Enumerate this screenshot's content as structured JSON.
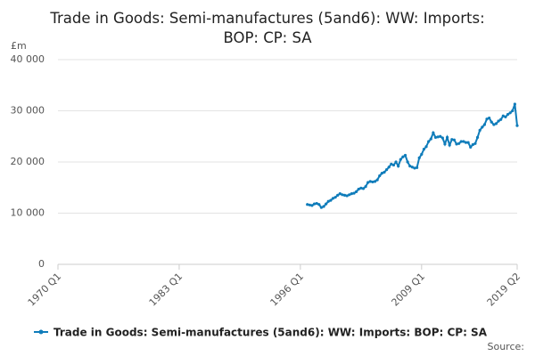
{
  "chart_data": {
    "type": "line",
    "title": "Trade in Goods: Semi-manufactures (5and6): WW: Imports: BOP: CP: SA",
    "y_unit": "£m",
    "source": "Source:",
    "categories": [
      "1970 Q1",
      null,
      null,
      null,
      null,
      null,
      null,
      null,
      null,
      null,
      null,
      null,
      null,
      null,
      null,
      null,
      null,
      null,
      null,
      null,
      null,
      null,
      null,
      null,
      null,
      null,
      null,
      null,
      null,
      null,
      null,
      null,
      null,
      null,
      null,
      null,
      null,
      null,
      null,
      null,
      null,
      null,
      null,
      null,
      null,
      null,
      null,
      null,
      null,
      null,
      null,
      null,
      "1983 Q1",
      null,
      null,
      null,
      null,
      null,
      null,
      null,
      null,
      null,
      null,
      null,
      null,
      null,
      null,
      null,
      null,
      null,
      null,
      null,
      null,
      null,
      null,
      null,
      null,
      null,
      null,
      null,
      null,
      null,
      null,
      null,
      null,
      null,
      null,
      null,
      null,
      null,
      null,
      null,
      null,
      null,
      null,
      null,
      null,
      null,
      null,
      null,
      null,
      null,
      null,
      null,
      "1996 Q1",
      null,
      null,
      null,
      null,
      null,
      null,
      null,
      null,
      null,
      null,
      null,
      null,
      null,
      null,
      null,
      null,
      null,
      null,
      null,
      null,
      null,
      null,
      null,
      null,
      null,
      null,
      null,
      null,
      null,
      null,
      null,
      null,
      null,
      null,
      null,
      null,
      null,
      null,
      null,
      null,
      null,
      null,
      null,
      null,
      null,
      null,
      null,
      null,
      null,
      null,
      null,
      "2009 Q1",
      null,
      null,
      null,
      null,
      null,
      null,
      null,
      null,
      null,
      null,
      null,
      null,
      null,
      null,
      null,
      null,
      null,
      null,
      null,
      null,
      null,
      null,
      null,
      null,
      null,
      null,
      null,
      null,
      null,
      null,
      null,
      null,
      null,
      null,
      null,
      null,
      null,
      null,
      null,
      null,
      "2019 Q2"
    ],
    "series": [
      {
        "name": "Trade in Goods: Semi-manufactures (5and6): WW: Imports: BOP: CP: SA",
        "color": "#0f7cba",
        "values": [
          null,
          null,
          null,
          null,
          null,
          null,
          null,
          null,
          null,
          null,
          null,
          null,
          null,
          null,
          null,
          null,
          null,
          null,
          null,
          null,
          null,
          null,
          null,
          null,
          null,
          null,
          null,
          null,
          null,
          null,
          null,
          null,
          null,
          null,
          null,
          null,
          null,
          null,
          null,
          null,
          null,
          null,
          null,
          null,
          null,
          null,
          null,
          null,
          null,
          null,
          null,
          null,
          null,
          null,
          null,
          null,
          null,
          null,
          null,
          null,
          null,
          null,
          null,
          null,
          null,
          null,
          null,
          null,
          null,
          null,
          null,
          null,
          null,
          null,
          null,
          null,
          null,
          null,
          null,
          null,
          null,
          null,
          null,
          null,
          null,
          null,
          null,
          null,
          null,
          null,
          null,
          null,
          null,
          null,
          null,
          null,
          null,
          null,
          null,
          null,
          null,
          null,
          null,
          null,
          null,
          null,
          null,
          11700,
          11600,
          11500,
          11800,
          11900,
          11700,
          11100,
          11300,
          11800,
          12300,
          12500,
          12900,
          13100,
          13500,
          13800,
          13600,
          13500,
          13400,
          13600,
          13800,
          13900,
          14200,
          14700,
          14900,
          14800,
          15200,
          16000,
          16200,
          16100,
          16200,
          16500,
          17300,
          17800,
          18000,
          18500,
          19000,
          19600,
          19400,
          20000,
          19200,
          20500,
          21000,
          21300,
          20000,
          19200,
          19000,
          18800,
          18900,
          20800,
          21500,
          22500,
          23000,
          24000,
          24500,
          25700,
          24800,
          24900,
          25000,
          24700,
          23500,
          24800,
          23300,
          24400,
          24300,
          23500,
          23600,
          24000,
          24000,
          23800,
          23800,
          22900,
          23400,
          23600,
          24800,
          26200,
          26800,
          27300,
          28400,
          28600,
          27800,
          27300,
          27500,
          28000,
          28300,
          29000,
          28800,
          29300,
          29600,
          30000,
          31300,
          27100
        ]
      }
    ],
    "ylim": [
      0,
      40000
    ],
    "yticks": [
      0,
      {
        "value": 10000,
        "label": "10 000"
      },
      {
        "value": 20000,
        "label": "20 000"
      },
      {
        "value": 30000,
        "label": "30 000"
      },
      {
        "value": 40000,
        "label": "40 000"
      }
    ],
    "grid": true
  }
}
